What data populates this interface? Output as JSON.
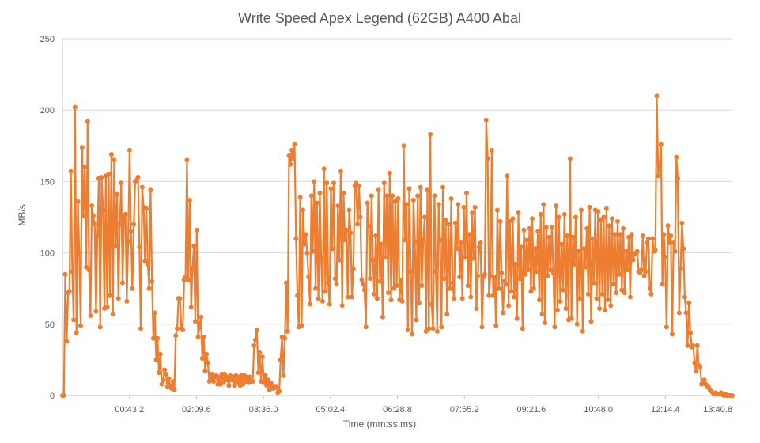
{
  "chart_data": {
    "type": "line",
    "title": "Write Speed Apex Legend (62GB) A400 Abal",
    "xlabel": "Time (mm:ss:ms)",
    "ylabel": "MB/s",
    "ylim": [
      0,
      250
    ],
    "yticks": [
      "0",
      "50",
      "100",
      "150",
      "200",
      "250"
    ],
    "xticks": [
      "00:43.2",
      "02:09.6",
      "03:36.0",
      "05:02.4",
      "06:28.8",
      "07:55.2",
      "09:21.6",
      "10:48.0",
      "12:14.4",
      "13:40.8"
    ],
    "grid": true,
    "legend": "none",
    "series": [
      {
        "color": "#ed7d31",
        "values": [
          0,
          0,
          85,
          38,
          72,
          73,
          157,
          87,
          53,
          202,
          44,
          136,
          100,
          49,
          174,
          126,
          160,
          90,
          192,
          88,
          56,
          133,
          126,
          120,
          59,
          112,
          152,
          48,
          153,
          130,
          61,
          154,
          62,
          155,
          70,
          169,
          57,
          165,
          105,
          141,
          68,
          120,
          149,
          79,
          126,
          127,
          66,
          108,
          172,
          115,
          75,
          120,
          150,
          151,
          153,
          104,
          47,
          146,
          132,
          94,
          131,
          92,
          75,
          144,
          80,
          40,
          58,
          25,
          40,
          16,
          29,
          8,
          11,
          18,
          15,
          6,
          12,
          7,
          5,
          10,
          4,
          42,
          47,
          68,
          68,
          47,
          46,
          81,
          83,
          165,
          81,
          137,
          62,
          89,
          105,
          52,
          116,
          41,
          48,
          55,
          26,
          41,
          17,
          29,
          23,
          10,
          11,
          15,
          10,
          13,
          14,
          8,
          13,
          8,
          15,
          9,
          15,
          11,
          13,
          7,
          14,
          11,
          13,
          7,
          14,
          9,
          13,
          7,
          14,
          8,
          14,
          10,
          13,
          9,
          13,
          10,
          10,
          35,
          39,
          46,
          16,
          30,
          10,
          27,
          9,
          14,
          7,
          11,
          4,
          9,
          7,
          5,
          6,
          6,
          2,
          3,
          25,
          41,
          14,
          40,
          79,
          45,
          168,
          162,
          172,
          166,
          176,
          110,
          70,
          48,
          139,
          49,
          130,
          106,
          113,
          100,
          83,
          64,
          140,
          101,
          150,
          75,
          135,
          68,
          142,
          96,
          66,
          159,
          73,
          149,
          79,
          64,
          145,
          103,
          149,
          82,
          78,
          133,
          95,
          157,
          63,
          142,
          109,
          116,
          69,
          130,
          114,
          69,
          89,
          147,
          149,
          120,
          147,
          125,
          81,
          78,
          74,
          48,
          135,
          119,
          82,
          140,
          95,
          71,
          112,
          68,
          144,
          80,
          106,
          55,
          149,
          97,
          140,
          72,
          156,
          67,
          140,
          75,
          136,
          77,
          138,
          67,
          81,
          66,
          175,
          109,
          134,
          46,
          145,
          87,
          43,
          137,
          108,
          53,
          140,
          65,
          146,
          77,
          109,
          125,
          45,
          144,
          47,
          183,
          64,
          47,
          140,
          87,
          45,
          134,
          109,
          48,
          146,
          82,
          123,
          57,
          120,
          75,
          138,
          79,
          68,
          121,
          103,
          134,
          83,
          107,
          68,
          132,
          97,
          142,
          77,
          113,
          69,
          128,
          96,
          132,
          61,
          84,
          104,
          107,
          48,
          83,
          85,
          193,
          166,
          70,
          84,
          172,
          70,
          83,
          49,
          130,
          75,
          122,
          86,
          58,
          80,
          78,
          154,
          63,
          122,
          73,
          124,
          69,
          92,
          54,
          128,
          82,
          104,
          47,
          116,
          85,
          109,
          88,
          117,
          73,
          124,
          75,
          103,
          87,
          115,
          67,
          127,
          57,
          134,
          51,
          118,
          84,
          111,
          88,
          118,
          86,
          48,
          133,
          60,
          125,
          66,
          106,
          74,
          127,
          61,
          112,
          53,
          166,
          54,
          111,
          92,
          125,
          50,
          101,
          68,
          130,
          45,
          103,
          90,
          117,
          71,
          132,
          52,
          110,
          79,
          130,
          68,
          129,
          61,
          123,
          71,
          125,
          60,
          131,
          67,
          119,
          63,
          124,
          78,
          113,
          72,
          122,
          85,
          113,
          74,
          117,
          72,
          101,
          88,
          111,
          69,
          113,
          95,
          99,
          100,
          101,
          87,
          86,
          88,
          112,
          84,
          87,
          107,
          110,
          75,
          71,
          110,
          101,
          102,
          210,
          154,
          162,
          176,
          78,
          113,
          97,
          48,
          119,
          107,
          112,
          43,
          107,
          101,
          167,
          152,
          58,
          89,
          121,
          103,
          69,
          58,
          35,
          65,
          44,
          34,
          35,
          23,
          17,
          35,
          21,
          20,
          8,
          10,
          11,
          8,
          6,
          6,
          4,
          3,
          2,
          1,
          2,
          1,
          1,
          1,
          2,
          1,
          0,
          1,
          0,
          0,
          0,
          0,
          0
        ]
      }
    ]
  }
}
